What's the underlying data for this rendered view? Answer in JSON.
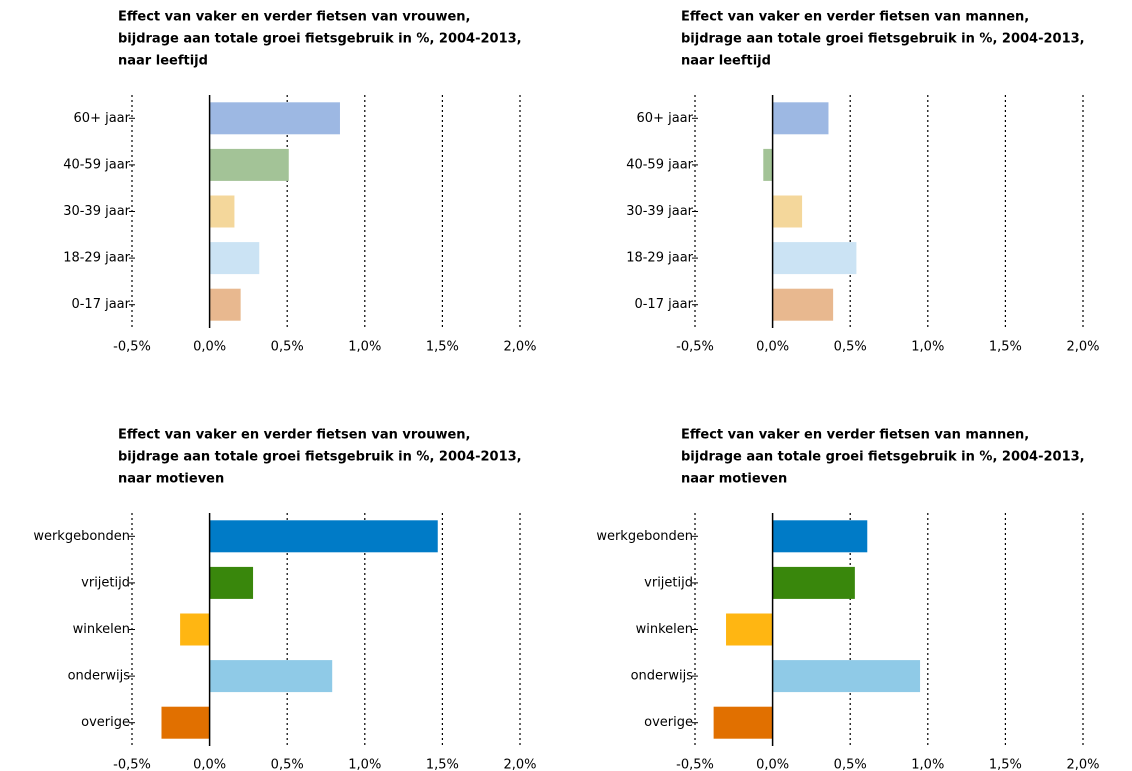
{
  "chart_data": [
    {
      "type": "bar",
      "title": [
        "Effect van vaker en verder fietsen van vrouwen,",
        "bijdrage aan totale groei fietsgebruik in %, 2004-2013,",
        "naar leeftijd"
      ],
      "categories": [
        "60+ jaar",
        "40-59 jaar",
        "30-39 jaar",
        "18-29 jaar",
        "0-17 jaar"
      ],
      "values": [
        0.84,
        0.51,
        0.16,
        0.32,
        0.2
      ],
      "colors": [
        "#9db8e3",
        "#a3c397",
        "#f4d79b",
        "#cbe3f4",
        "#e8b88f"
      ],
      "xlim": [
        -0.5,
        2.0
      ],
      "xticks": [
        {
          "value": -0.5,
          "label": "-0,5%"
        },
        {
          "value": 0,
          "label": "0,0%"
        },
        {
          "value": 0.5,
          "label": "0,5%"
        },
        {
          "value": 1.0,
          "label": "1,0%"
        },
        {
          "value": 1.5,
          "label": "1,5%"
        },
        {
          "value": 2.0,
          "label": "2,0%"
        }
      ],
      "grid": true
    },
    {
      "type": "bar",
      "title": [
        "Effect van vaker en verder fietsen van mannen,",
        "bijdrage aan totale groei fietsgebruik in %, 2004-2013,",
        "naar leeftijd"
      ],
      "categories": [
        "60+ jaar",
        "40-59 jaar",
        "30-39 jaar",
        "18-29 jaar",
        "0-17 jaar"
      ],
      "values": [
        0.36,
        -0.06,
        0.19,
        0.54,
        0.39
      ],
      "colors": [
        "#9db8e3",
        "#a3c397",
        "#f4d79b",
        "#cbe3f4",
        "#e8b88f"
      ],
      "xlim": [
        -0.5,
        2.0
      ],
      "xticks": [
        {
          "value": -0.5,
          "label": "-0,5%"
        },
        {
          "value": 0,
          "label": "0,0%"
        },
        {
          "value": 0.5,
          "label": "0,5%"
        },
        {
          "value": 1.0,
          "label": "1,0%"
        },
        {
          "value": 1.5,
          "label": "1,5%"
        },
        {
          "value": 2.0,
          "label": "2,0%"
        }
      ],
      "grid": true
    },
    {
      "type": "bar",
      "title": [
        "Effect van vaker en verder fietsen van vrouwen,",
        "bijdrage aan totale groei fietsgebruik in %, 2004-2013,",
        "naar motieven"
      ],
      "categories": [
        "werkgebonden",
        "vrijetijd",
        "winkelen",
        "onderwijs",
        "overige"
      ],
      "values": [
        1.47,
        0.28,
        -0.19,
        0.79,
        -0.31
      ],
      "colors": [
        "#007bc7",
        "#39870c",
        "#ffb612",
        "#8fcae7",
        "#e17000"
      ],
      "xlim": [
        -0.5,
        2.0
      ],
      "xticks": [
        {
          "value": -0.5,
          "label": "-0,5%"
        },
        {
          "value": 0,
          "label": "0,0%"
        },
        {
          "value": 0.5,
          "label": "0,5%"
        },
        {
          "value": 1.0,
          "label": "1,0%"
        },
        {
          "value": 1.5,
          "label": "1,5%"
        },
        {
          "value": 2.0,
          "label": "2,0%"
        }
      ],
      "grid": true
    },
    {
      "type": "bar",
      "title": [
        "Effect van vaker en verder fietsen van mannen,",
        "bijdrage aan totale groei fietsgebruik in %, 2004-2013,",
        "naar motieven"
      ],
      "categories": [
        "werkgebonden",
        "vrijetijd",
        "winkelen",
        "onderwijs",
        "overige"
      ],
      "values": [
        0.61,
        0.53,
        -0.3,
        0.95,
        -0.38
      ],
      "colors": [
        "#007bc7",
        "#39870c",
        "#ffb612",
        "#8fcae7",
        "#e17000"
      ],
      "xlim": [
        -0.5,
        2.0
      ],
      "xticks": [
        {
          "value": -0.5,
          "label": "-0,5%"
        },
        {
          "value": 0,
          "label": "0,0%"
        },
        {
          "value": 0.5,
          "label": "0,5%"
        },
        {
          "value": 1.0,
          "label": "1,0%"
        },
        {
          "value": 1.5,
          "label": "1,5%"
        },
        {
          "value": 2.0,
          "label": "2,0%"
        }
      ],
      "grid": true
    }
  ]
}
